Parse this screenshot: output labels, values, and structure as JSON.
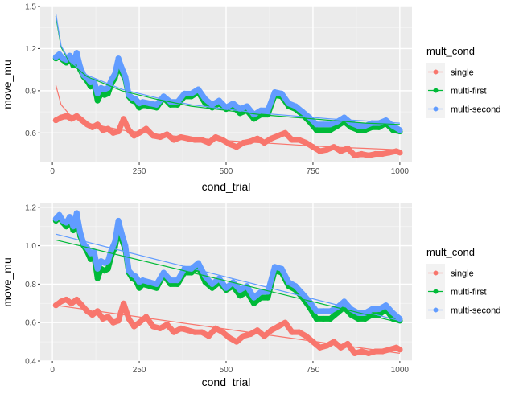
{
  "chart_data": [
    {
      "type": "scatter",
      "xlabel": "cond_trial",
      "ylabel": "move_mu",
      "xlim": [
        -35,
        1035
      ],
      "ylim": [
        0.39,
        1.5
      ],
      "xticks": [
        0,
        250,
        500,
        750,
        1000
      ],
      "yticks": [
        0.6,
        0.9,
        1.2,
        1.5
      ],
      "xtick_labels": [
        "0",
        "250",
        "500",
        "750",
        "1000"
      ],
      "ytick_labels": [
        "0.6",
        "0.9",
        "1.2",
        "1.5"
      ],
      "grid": true,
      "legend": {
        "title": "mult_cond",
        "position": "right"
      },
      "trend": "log",
      "series": [
        {
          "name": "single",
          "color": "#F8766D",
          "x": [
            10,
            25,
            40,
            55,
            70,
            85,
            100,
            115,
            130,
            145,
            160,
            175,
            190,
            205,
            220,
            235,
            250,
            270,
            290,
            310,
            330,
            350,
            370,
            390,
            410,
            430,
            450,
            470,
            490,
            510,
            530,
            550,
            570,
            590,
            610,
            630,
            650,
            670,
            690,
            710,
            730,
            750,
            770,
            790,
            810,
            830,
            850,
            870,
            890,
            910,
            930,
            950,
            970,
            990,
            1000
          ],
          "y": [
            0.69,
            0.71,
            0.72,
            0.7,
            0.72,
            0.69,
            0.66,
            0.64,
            0.66,
            0.62,
            0.63,
            0.6,
            0.61,
            0.7,
            0.62,
            0.58,
            0.6,
            0.63,
            0.58,
            0.57,
            0.59,
            0.55,
            0.57,
            0.56,
            0.55,
            0.55,
            0.53,
            0.57,
            0.55,
            0.52,
            0.5,
            0.53,
            0.54,
            0.56,
            0.53,
            0.56,
            0.58,
            0.6,
            0.55,
            0.55,
            0.53,
            0.5,
            0.47,
            0.48,
            0.5,
            0.47,
            0.49,
            0.44,
            0.45,
            0.44,
            0.45,
            0.45,
            0.46,
            0.47,
            0.46
          ],
          "fit": [
            [
              10,
              0.94
            ],
            [
              25,
              0.8
            ],
            [
              50,
              0.73
            ],
            [
              100,
              0.67
            ],
            [
              200,
              0.62
            ],
            [
              300,
              0.59
            ],
            [
              400,
              0.565
            ],
            [
              500,
              0.545
            ],
            [
              600,
              0.53
            ],
            [
              700,
              0.515
            ],
            [
              800,
              0.5
            ],
            [
              900,
              0.49
            ],
            [
              1000,
              0.48
            ]
          ]
        },
        {
          "name": "multi-first",
          "color": "#00BA38",
          "x": [
            10,
            20,
            30,
            40,
            50,
            60,
            70,
            80,
            90,
            100,
            110,
            120,
            130,
            140,
            150,
            160,
            170,
            180,
            190,
            200,
            210,
            220,
            230,
            240,
            250,
            260,
            280,
            300,
            320,
            340,
            360,
            380,
            400,
            420,
            440,
            460,
            480,
            500,
            520,
            540,
            560,
            580,
            600,
            620,
            640,
            660,
            680,
            700,
            720,
            740,
            760,
            780,
            800,
            820,
            840,
            860,
            880,
            900,
            920,
            940,
            960,
            980,
            1000
          ],
          "y": [
            1.13,
            1.15,
            1.12,
            1.1,
            1.14,
            1.08,
            1.16,
            1.05,
            1.0,
            0.97,
            0.93,
            0.95,
            0.83,
            0.88,
            0.87,
            0.88,
            0.95,
            0.99,
            1.08,
            1.03,
            0.98,
            0.86,
            0.83,
            0.82,
            0.78,
            0.8,
            0.79,
            0.78,
            0.85,
            0.8,
            0.8,
            0.86,
            0.86,
            0.89,
            0.81,
            0.78,
            0.81,
            0.77,
            0.79,
            0.74,
            0.76,
            0.7,
            0.73,
            0.73,
            0.87,
            0.86,
            0.79,
            0.77,
            0.73,
            0.68,
            0.62,
            0.62,
            0.62,
            0.65,
            0.68,
            0.64,
            0.62,
            0.62,
            0.64,
            0.64,
            0.67,
            0.62,
            0.61
          ],
          "fit": [
            [
              10,
              1.43
            ],
            [
              25,
              1.21
            ],
            [
              50,
              1.1
            ],
            [
              100,
              1.0
            ],
            [
              200,
              0.9
            ],
            [
              300,
              0.84
            ],
            [
              400,
              0.79
            ],
            [
              500,
              0.76
            ],
            [
              600,
              0.73
            ],
            [
              700,
              0.71
            ],
            [
              800,
              0.69
            ],
            [
              900,
              0.67
            ],
            [
              1000,
              0.66
            ]
          ]
        },
        {
          "name": "multi-second",
          "color": "#619CFF",
          "x": [
            10,
            20,
            30,
            40,
            50,
            60,
            70,
            80,
            90,
            100,
            110,
            120,
            130,
            140,
            150,
            160,
            170,
            180,
            190,
            200,
            210,
            220,
            230,
            240,
            250,
            260,
            280,
            300,
            320,
            340,
            360,
            380,
            400,
            420,
            440,
            460,
            480,
            500,
            520,
            540,
            560,
            580,
            600,
            620,
            640,
            660,
            680,
            700,
            720,
            740,
            760,
            780,
            800,
            820,
            840,
            860,
            880,
            900,
            920,
            940,
            960,
            980,
            1000
          ],
          "y": [
            1.14,
            1.16,
            1.13,
            1.12,
            1.15,
            1.1,
            1.17,
            1.07,
            1.01,
            0.99,
            0.96,
            0.97,
            0.88,
            0.92,
            0.91,
            0.92,
            0.98,
            1.02,
            1.13,
            1.06,
            1.0,
            0.87,
            0.85,
            0.84,
            0.81,
            0.82,
            0.81,
            0.8,
            0.86,
            0.82,
            0.82,
            0.88,
            0.88,
            0.91,
            0.84,
            0.8,
            0.83,
            0.78,
            0.81,
            0.77,
            0.79,
            0.73,
            0.76,
            0.76,
            0.89,
            0.88,
            0.81,
            0.79,
            0.75,
            0.71,
            0.66,
            0.66,
            0.66,
            0.68,
            0.71,
            0.67,
            0.65,
            0.65,
            0.67,
            0.67,
            0.69,
            0.65,
            0.62
          ],
          "fit": [
            [
              10,
              1.45
            ],
            [
              25,
              1.22
            ],
            [
              50,
              1.11
            ],
            [
              100,
              1.01
            ],
            [
              200,
              0.91
            ],
            [
              300,
              0.85
            ],
            [
              400,
              0.8
            ],
            [
              500,
              0.77
            ],
            [
              600,
              0.74
            ],
            [
              700,
              0.72
            ],
            [
              800,
              0.7
            ],
            [
              900,
              0.685
            ],
            [
              1000,
              0.67
            ]
          ]
        }
      ]
    },
    {
      "type": "scatter",
      "xlabel": "cond_trial",
      "ylabel": "move_mu",
      "xlim": [
        -35,
        1035
      ],
      "ylim": [
        0.4,
        1.22
      ],
      "xticks": [
        0,
        250,
        500,
        750,
        1000
      ],
      "yticks": [
        0.4,
        0.6,
        0.8,
        1.0,
        1.2
      ],
      "xtick_labels": [
        "0",
        "250",
        "500",
        "750",
        "1000"
      ],
      "ytick_labels": [
        "0.4",
        "0.6",
        "0.8",
        "1.0",
        "1.2"
      ],
      "grid": true,
      "legend": {
        "title": "mult_cond",
        "position": "right"
      },
      "trend": "linear",
      "series": [
        {
          "name": "single",
          "color": "#F8766D",
          "x": [
            10,
            25,
            40,
            55,
            70,
            85,
            100,
            115,
            130,
            145,
            160,
            175,
            190,
            205,
            220,
            235,
            250,
            270,
            290,
            310,
            330,
            350,
            370,
            390,
            410,
            430,
            450,
            470,
            490,
            510,
            530,
            550,
            570,
            590,
            610,
            630,
            650,
            670,
            690,
            710,
            730,
            750,
            770,
            790,
            810,
            830,
            850,
            870,
            890,
            910,
            930,
            950,
            970,
            990,
            1000
          ],
          "y": [
            0.69,
            0.71,
            0.72,
            0.7,
            0.72,
            0.69,
            0.66,
            0.64,
            0.66,
            0.62,
            0.63,
            0.6,
            0.61,
            0.7,
            0.62,
            0.58,
            0.6,
            0.63,
            0.58,
            0.57,
            0.59,
            0.55,
            0.57,
            0.56,
            0.55,
            0.55,
            0.53,
            0.57,
            0.55,
            0.52,
            0.5,
            0.53,
            0.54,
            0.56,
            0.53,
            0.56,
            0.58,
            0.6,
            0.55,
            0.55,
            0.53,
            0.5,
            0.47,
            0.48,
            0.5,
            0.47,
            0.49,
            0.44,
            0.45,
            0.44,
            0.45,
            0.45,
            0.46,
            0.47,
            0.46
          ],
          "fit": [
            [
              10,
              0.69
            ],
            [
              1000,
              0.44
            ]
          ]
        },
        {
          "name": "multi-first",
          "color": "#00BA38",
          "x": [
            10,
            20,
            30,
            40,
            50,
            60,
            70,
            80,
            90,
            100,
            110,
            120,
            130,
            140,
            150,
            160,
            170,
            180,
            190,
            200,
            210,
            220,
            230,
            240,
            250,
            260,
            280,
            300,
            320,
            340,
            360,
            380,
            400,
            420,
            440,
            460,
            480,
            500,
            520,
            540,
            560,
            580,
            600,
            620,
            640,
            660,
            680,
            700,
            720,
            740,
            760,
            780,
            800,
            820,
            840,
            860,
            880,
            900,
            920,
            940,
            960,
            980,
            1000
          ],
          "y": [
            1.13,
            1.15,
            1.12,
            1.1,
            1.14,
            1.08,
            1.16,
            1.05,
            1.0,
            0.97,
            0.93,
            0.95,
            0.83,
            0.88,
            0.87,
            0.88,
            0.95,
            0.99,
            1.08,
            1.03,
            0.98,
            0.86,
            0.83,
            0.82,
            0.78,
            0.8,
            0.79,
            0.78,
            0.85,
            0.8,
            0.8,
            0.86,
            0.86,
            0.89,
            0.81,
            0.78,
            0.81,
            0.77,
            0.79,
            0.74,
            0.76,
            0.7,
            0.73,
            0.73,
            0.87,
            0.86,
            0.79,
            0.77,
            0.73,
            0.68,
            0.62,
            0.62,
            0.62,
            0.65,
            0.68,
            0.64,
            0.62,
            0.62,
            0.64,
            0.64,
            0.67,
            0.62,
            0.61
          ],
          "fit": [
            [
              10,
              1.03
            ],
            [
              1000,
              0.6
            ]
          ]
        },
        {
          "name": "multi-second",
          "color": "#619CFF",
          "x": [
            10,
            20,
            30,
            40,
            50,
            60,
            70,
            80,
            90,
            100,
            110,
            120,
            130,
            140,
            150,
            160,
            170,
            180,
            190,
            200,
            210,
            220,
            230,
            240,
            250,
            260,
            280,
            300,
            320,
            340,
            360,
            380,
            400,
            420,
            440,
            460,
            480,
            500,
            520,
            540,
            560,
            580,
            600,
            620,
            640,
            660,
            680,
            700,
            720,
            740,
            760,
            780,
            800,
            820,
            840,
            860,
            880,
            900,
            920,
            940,
            960,
            980,
            1000
          ],
          "y": [
            1.14,
            1.16,
            1.13,
            1.12,
            1.15,
            1.1,
            1.17,
            1.07,
            1.01,
            0.99,
            0.96,
            0.97,
            0.88,
            0.92,
            0.91,
            0.92,
            0.98,
            1.02,
            1.13,
            1.06,
            1.0,
            0.87,
            0.85,
            0.84,
            0.81,
            0.82,
            0.81,
            0.8,
            0.86,
            0.82,
            0.82,
            0.88,
            0.88,
            0.91,
            0.84,
            0.8,
            0.83,
            0.78,
            0.81,
            0.77,
            0.79,
            0.73,
            0.76,
            0.76,
            0.89,
            0.88,
            0.81,
            0.79,
            0.75,
            0.71,
            0.66,
            0.66,
            0.66,
            0.68,
            0.71,
            0.67,
            0.65,
            0.65,
            0.67,
            0.67,
            0.69,
            0.65,
            0.62
          ],
          "fit": [
            [
              10,
              1.06
            ],
            [
              1000,
              0.61
            ]
          ]
        }
      ]
    }
  ]
}
